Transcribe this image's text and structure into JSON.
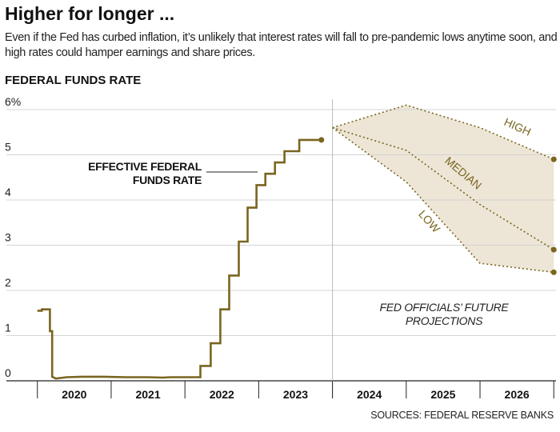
{
  "chart_data": {
    "type": "line",
    "title": "Higher for longer ...",
    "subtitle": "Even if the Fed has curbed inflation, it’s unlikely that interest rates will fall to pre-pandemic lows anytime soon, and high rates could hamper earnings and share prices.",
    "y_label": "FEDERAL FUNDS RATE",
    "source": "SOURCES: FEDERAL RESERVE BANKS",
    "projection_note": "FED OFFICIALS’ FUTURE PROJECTIONS",
    "xlim": [
      2019.58,
      2027.03
    ],
    "xticks": [
      2020,
      2021,
      2022,
      2023,
      2024,
      2025,
      2026,
      2027
    ],
    "xtick_labels": [
      "2020",
      "2021",
      "2022",
      "2023",
      "2024",
      "2025",
      "2026"
    ],
    "ylim": [
      0,
      6
    ],
    "yticks": [
      0,
      1,
      2,
      3,
      4,
      5,
      {
        "value": 6,
        "label": "6%"
      }
    ],
    "grid": true,
    "band_color": "#ede6d6",
    "series": [
      {
        "name": "EFFECTIVE FEDERAL FUNDS RATE",
        "color": "#7a6520",
        "style": "solid",
        "x": [
          2020.0,
          2020.06,
          2020.06,
          2020.17,
          2020.17,
          2020.2,
          2020.2,
          2020.25,
          2020.4,
          2020.6,
          2020.9,
          2021.2,
          2021.5,
          2021.7,
          2021.8,
          2022.0,
          2022.21,
          2022.21,
          2022.35,
          2022.35,
          2022.48,
          2022.48,
          2022.6,
          2022.6,
          2022.73,
          2022.73,
          2022.85,
          2022.85,
          2022.97,
          2022.97,
          2023.09,
          2023.09,
          2023.22,
          2023.22,
          2023.35,
          2023.35,
          2023.55,
          2023.55,
          2023.85
        ],
        "values": [
          1.55,
          1.55,
          1.58,
          1.58,
          1.1,
          1.1,
          0.09,
          0.05,
          0.08,
          0.09,
          0.09,
          0.08,
          0.08,
          0.07,
          0.08,
          0.08,
          0.08,
          0.33,
          0.33,
          0.83,
          0.83,
          1.58,
          1.58,
          2.33,
          2.33,
          3.08,
          3.08,
          3.83,
          3.83,
          4.33,
          4.33,
          4.58,
          4.58,
          4.83,
          4.83,
          5.08,
          5.08,
          5.33,
          5.33
        ]
      },
      {
        "name": "HIGH",
        "color": "#7a6520",
        "style": "dotted",
        "x": [
          2024,
          2025,
          2026,
          2027
        ],
        "values": [
          5.6,
          6.1,
          5.6,
          4.9
        ]
      },
      {
        "name": "MEDIAN",
        "color": "#7a6520",
        "style": "dotted",
        "x": [
          2024,
          2025,
          2026,
          2027
        ],
        "values": [
          5.6,
          5.1,
          3.9,
          2.9
        ]
      },
      {
        "name": "LOW",
        "color": "#7a6520",
        "style": "dotted",
        "x": [
          2024,
          2025,
          2026,
          2027
        ],
        "values": [
          5.6,
          4.4,
          2.6,
          2.4
        ]
      }
    ]
  }
}
